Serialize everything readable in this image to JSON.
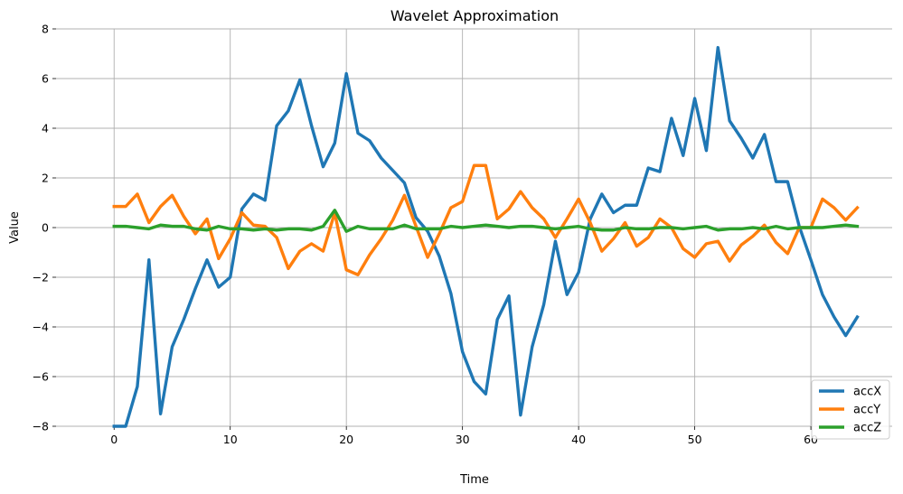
{
  "chart_data": {
    "type": "line",
    "title": "Wavelet Approximation",
    "xlabel": "Time",
    "ylabel": "Value",
    "xlim": [
      -5,
      67
    ],
    "ylim": [
      -8,
      8
    ],
    "xticks": [
      0,
      10,
      20,
      30,
      40,
      50,
      60
    ],
    "yticks": [
      -8,
      -6,
      -4,
      -2,
      0,
      2,
      4,
      6,
      8
    ],
    "grid": true,
    "legend_position": "bottom-right",
    "x": [
      0,
      1,
      2,
      3,
      4,
      5,
      6,
      7,
      8,
      9,
      10,
      11,
      12,
      13,
      14,
      15,
      16,
      17,
      18,
      19,
      20,
      21,
      22,
      23,
      24,
      25,
      26,
      27,
      28,
      29,
      30,
      31,
      32,
      33,
      34,
      35,
      36,
      37,
      38,
      39,
      40,
      41,
      42,
      43,
      44,
      45,
      46,
      47,
      48,
      49,
      50,
      51,
      52,
      53,
      54,
      55,
      56,
      57,
      58,
      59,
      60,
      61,
      62,
      63,
      64
    ],
    "series": [
      {
        "name": "accX",
        "color": "#1f77b4",
        "values": [
          -8.0,
          -8.0,
          -6.4,
          -1.3,
          -7.5,
          -4.8,
          -3.7,
          -2.45,
          -1.3,
          -2.4,
          -2.0,
          0.75,
          1.35,
          1.1,
          4.1,
          4.7,
          5.95,
          4.1,
          2.45,
          3.4,
          6.2,
          3.8,
          3.5,
          2.8,
          2.3,
          1.8,
          0.4,
          -0.15,
          -1.15,
          -2.65,
          -5.0,
          -6.2,
          -6.7,
          -3.7,
          -2.75,
          -7.55,
          -4.8,
          -3.1,
          -0.55,
          -2.7,
          -1.8,
          0.35,
          1.35,
          0.6,
          0.9,
          0.9,
          2.4,
          2.25,
          4.4,
          2.9,
          5.2,
          3.1,
          7.25,
          4.3,
          3.6,
          2.8,
          3.75,
          1.85,
          1.85,
          0.05,
          -1.3,
          -2.7,
          -3.6,
          -4.35,
          -3.6
        ]
      },
      {
        "name": "accY",
        "color": "#ff7f0e",
        "values": [
          0.85,
          0.85,
          1.35,
          0.2,
          0.85,
          1.3,
          0.45,
          -0.25,
          0.35,
          -1.25,
          -0.45,
          0.6,
          0.1,
          0.05,
          -0.4,
          -1.65,
          -0.95,
          -0.65,
          -0.95,
          0.6,
          -1.7,
          -1.9,
          -1.1,
          -0.45,
          0.3,
          1.3,
          0.05,
          -1.2,
          -0.25,
          0.8,
          1.05,
          2.5,
          2.5,
          0.35,
          0.75,
          1.45,
          0.8,
          0.35,
          -0.4,
          0.35,
          1.15,
          0.2,
          -0.95,
          -0.45,
          0.2,
          -0.75,
          -0.4,
          0.35,
          0.0,
          -0.85,
          -1.2,
          -0.65,
          -0.55,
          -1.35,
          -0.7,
          -0.35,
          0.1,
          -0.6,
          -1.05,
          0.0,
          0.0,
          1.15,
          0.8,
          0.3,
          0.8
        ]
      },
      {
        "name": "accZ",
        "color": "#2ca02c",
        "values": [
          0.05,
          0.05,
          0.0,
          -0.05,
          0.1,
          0.05,
          0.05,
          -0.05,
          -0.1,
          0.05,
          -0.05,
          -0.05,
          -0.1,
          -0.05,
          -0.1,
          -0.05,
          -0.05,
          -0.1,
          0.05,
          0.7,
          -0.15,
          0.05,
          -0.05,
          -0.05,
          -0.05,
          0.1,
          -0.05,
          -0.05,
          -0.05,
          0.05,
          0.0,
          0.05,
          0.1,
          0.05,
          0.0,
          0.05,
          0.05,
          0.0,
          -0.05,
          0.0,
          0.05,
          -0.05,
          -0.1,
          -0.1,
          0.0,
          -0.05,
          -0.05,
          0.0,
          0.0,
          -0.05,
          0.0,
          0.05,
          -0.1,
          -0.05,
          -0.05,
          0.0,
          -0.05,
          0.05,
          -0.05,
          0.0,
          0.0,
          0.0,
          0.05,
          0.1,
          0.05
        ]
      }
    ]
  }
}
